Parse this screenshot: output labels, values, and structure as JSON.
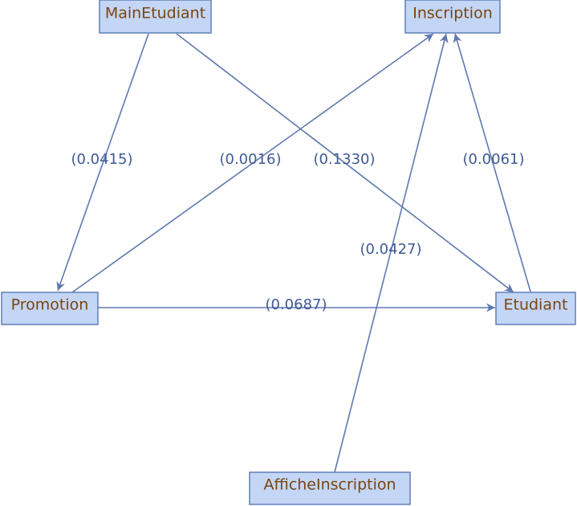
{
  "nodes": {
    "main_etudiant": "MainEtudiant",
    "inscription": "Inscription",
    "promotion": "Promotion",
    "etudiant": "Etudiant",
    "affiche_inscription": "AfficheInscription"
  },
  "edges": {
    "main_to_promotion": "(0.0415)",
    "promotion_to_inscription": "(0.0016)",
    "main_to_etudiant": "(0.1330)",
    "etudiant_to_inscription": "(0.0061)",
    "affiche_to_inscription": "(0.0427)",
    "promotion_to_etudiant": "(0.0687)"
  },
  "colors": {
    "node_fill": "#c4d6f5",
    "node_border": "#5f7fb8",
    "node_text": "#7a4511",
    "edge": "#5f79b0",
    "edge_text": "#3f5a95"
  }
}
